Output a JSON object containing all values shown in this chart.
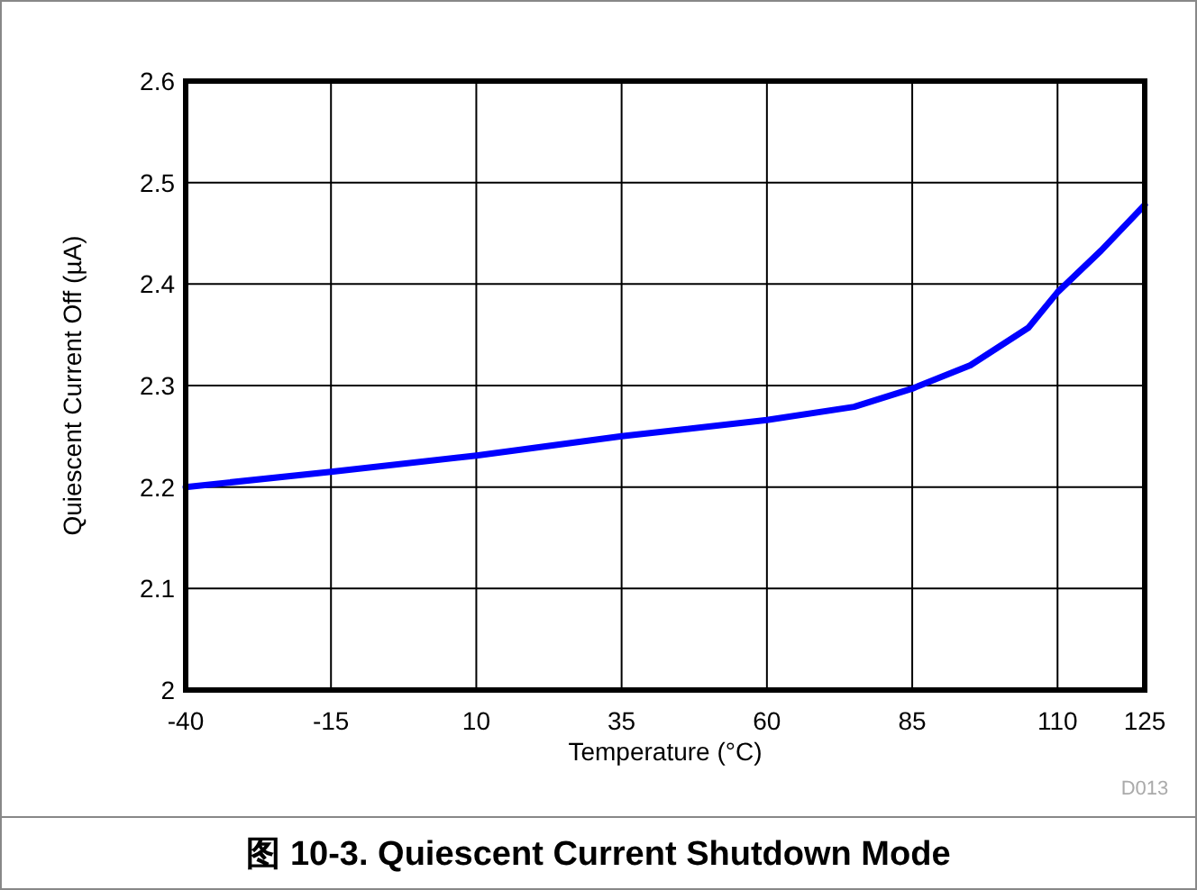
{
  "chart_data": {
    "type": "line",
    "title": "图 10-3. Quiescent Current Shutdown Mode",
    "xlabel": "Temperature (°C)",
    "ylabel": "Quiescent Current Off (µA)",
    "annotations": [
      "D013"
    ],
    "xlim": [
      -40,
      125
    ],
    "xticks": [
      -40,
      -15,
      10,
      35,
      60,
      85,
      110,
      125
    ],
    "ylim": [
      2,
      2.6
    ],
    "yticks": [
      2,
      2.1,
      2.2,
      2.3,
      2.4,
      2.5,
      2.6
    ],
    "grid": true,
    "line_style": "solid",
    "series": [
      {
        "color": "#0000ff",
        "x": [
          -40,
          -15,
          10,
          35,
          60,
          75,
          85,
          95,
          105,
          110,
          117.5,
          125
        ],
        "values": [
          2.2,
          2.215,
          2.231,
          2.25,
          2.266,
          2.279,
          2.297,
          2.32,
          2.357,
          2.392,
          2.433,
          2.478
        ]
      }
    ]
  }
}
